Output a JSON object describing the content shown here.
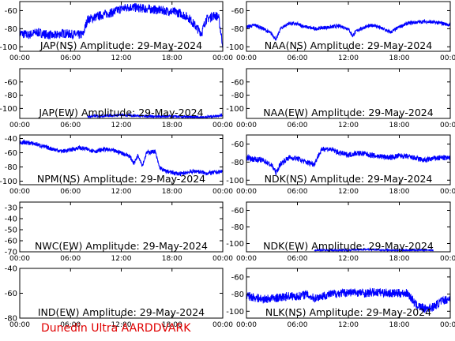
{
  "footer": "Dunedin Ultra AARDDVARK",
  "line_color": "#0000ff",
  "footer_color": "#e00000",
  "x_ticks": [
    "00:00",
    "06:00",
    "12:00",
    "18:00",
    "00:00"
  ],
  "chart_data": [
    {
      "type": "line",
      "title": "JAP(NS) Amplitude: 29-May-2024",
      "ylim": [
        -105,
        -50
      ],
      "yticks": [
        -100,
        -80,
        -60
      ],
      "grid": false,
      "trace": {
        "x": [
          0,
          1,
          2,
          3,
          4,
          5,
          6,
          7,
          7.5,
          8,
          9,
          10,
          11,
          12,
          13,
          14,
          15,
          16,
          17,
          18,
          19,
          20,
          21,
          21.5,
          22,
          23,
          23.5,
          24
        ],
        "y": [
          -85,
          -87,
          -84,
          -86,
          -88,
          -85,
          -86,
          -87,
          -86,
          -70,
          -67,
          -64,
          -62,
          -58,
          -56,
          -57,
          -58,
          -59,
          -60,
          -61,
          -63,
          -68,
          -80,
          -85,
          -70,
          -65,
          -67,
          -98
        ],
        "noise": 5
      }
    },
    {
      "type": "line",
      "title": "NAA(NS) Amplitude: 29-May-2024",
      "ylim": [
        -105,
        -50
      ],
      "yticks": [
        -100,
        -80,
        -60
      ],
      "grid": false,
      "trace": {
        "x": [
          0,
          1,
          2,
          3,
          3.5,
          4,
          5,
          6,
          7,
          8,
          9,
          10,
          11,
          12,
          12.5,
          13,
          14,
          15,
          16,
          17,
          18,
          19,
          20,
          21,
          22,
          23,
          24
        ],
        "y": [
          -78,
          -76,
          -80,
          -86,
          -92,
          -80,
          -74,
          -75,
          -78,
          -80,
          -79,
          -78,
          -77,
          -80,
          -88,
          -82,
          -78,
          -76,
          -80,
          -84,
          -78,
          -74,
          -73,
          -72,
          -73,
          -74,
          -76
        ],
        "noise": 2
      }
    },
    {
      "type": "line",
      "title": "JAP(EW) Amplitude: 29-May-2024",
      "ylim": [
        -115,
        -40
      ],
      "yticks": [
        -100,
        -80,
        -60
      ],
      "grid": false,
      "trace": {
        "x": [
          8,
          10,
          12,
          14,
          16,
          18,
          20,
          22,
          24
        ],
        "y": [
          -112,
          -111,
          -110,
          -111,
          -112,
          -112,
          -113,
          -113,
          -110
        ],
        "noise": 2
      }
    },
    {
      "type": "line",
      "title": "NAA(EW) Amplitude: 29-May-2024",
      "ylim": [
        -115,
        -40
      ],
      "yticks": [
        -100,
        -80,
        -60
      ],
      "grid": false,
      "trace": {
        "x": [
          0,
          2,
          4,
          6,
          8,
          10,
          12,
          14,
          16,
          18,
          20,
          22,
          24
        ],
        "y": [
          -118,
          -118,
          -118,
          -118,
          -118,
          -118,
          -118,
          -118,
          -118,
          -118,
          -118,
          -118,
          -118
        ],
        "noise": 0
      }
    },
    {
      "type": "line",
      "title": "NPM(NS) Amplitude: 29-May-2024",
      "ylim": [
        -105,
        -35
      ],
      "yticks": [
        -100,
        -80,
        -60,
        -40
      ],
      "grid": false,
      "trace": {
        "x": [
          0,
          1,
          2,
          3,
          4,
          5,
          6,
          7,
          8,
          9,
          10,
          11,
          12,
          13,
          13.5,
          14,
          14.5,
          15,
          16,
          16.5,
          17,
          18,
          19,
          20,
          21,
          22,
          23,
          24
        ],
        "y": [
          -45,
          -46,
          -48,
          -52,
          -55,
          -58,
          -56,
          -53,
          -55,
          -58,
          -55,
          -57,
          -60,
          -65,
          -75,
          -63,
          -78,
          -60,
          -58,
          -80,
          -85,
          -88,
          -90,
          -87,
          -86,
          -89,
          -88,
          -86
        ],
        "noise": 3
      }
    },
    {
      "type": "line",
      "title": "NDK(NS) Amplitude: 29-May-2024",
      "ylim": [
        -105,
        -50
      ],
      "yticks": [
        -100,
        -80,
        -60
      ],
      "grid": false,
      "trace": {
        "x": [
          0,
          1,
          2,
          3,
          3.5,
          4,
          5,
          6,
          7,
          8,
          8.5,
          9,
          10,
          11,
          12,
          13,
          14,
          15,
          16,
          17,
          18,
          19,
          20,
          21,
          22,
          23,
          24
        ],
        "y": [
          -75,
          -77,
          -78,
          -84,
          -92,
          -82,
          -75,
          -76,
          -80,
          -82,
          -72,
          -65,
          -66,
          -70,
          -72,
          -70,
          -71,
          -73,
          -74,
          -75,
          -73,
          -74,
          -76,
          -78,
          -76,
          -75,
          -76
        ],
        "noise": 3
      }
    },
    {
      "type": "line",
      "title": "NWC(EW) Amplitude: 29-May-2024",
      "ylim": [
        -70,
        -25
      ],
      "yticks": [
        -70,
        -60,
        -50,
        -40,
        -30
      ],
      "grid": false,
      "trace": {
        "x": [],
        "y": [],
        "noise": 0
      }
    },
    {
      "type": "line",
      "title": "NDK(EW) Amplitude: 29-May-2024",
      "ylim": [
        -110,
        -50
      ],
      "yticks": [
        -100,
        -80,
        -60
      ],
      "grid": false,
      "trace": {
        "x": [
          8,
          10,
          12,
          14,
          16,
          18,
          20,
          22
        ],
        "y": [
          -108,
          -108,
          -108,
          -107,
          -108,
          -108,
          -108,
          -108
        ],
        "noise": 1
      }
    },
    {
      "type": "line",
      "title": "IND(EW) Amplitude: 29-May-2024",
      "ylim": [
        -80,
        -40
      ],
      "yticks": [
        -80,
        -60,
        -40
      ],
      "grid": false,
      "trace": {
        "x": [],
        "y": [],
        "noise": 0
      }
    },
    {
      "type": "line",
      "title": "NLK(NS) Amplitude: 29-May-2024",
      "ylim": [
        -108,
        -50
      ],
      "yticks": [
        -100,
        -80,
        -60
      ],
      "grid": false,
      "trace": {
        "x": [
          0,
          1,
          2,
          3,
          4,
          5,
          6,
          7,
          8,
          9,
          10,
          11,
          12,
          13,
          14,
          15,
          16,
          17,
          18,
          19,
          20,
          21,
          22,
          23,
          24
        ],
        "y": [
          -82,
          -84,
          -86,
          -85,
          -84,
          -82,
          -83,
          -80,
          -85,
          -82,
          -80,
          -79,
          -78,
          -78,
          -79,
          -78,
          -78,
          -79,
          -79,
          -79,
          -93,
          -97,
          -95,
          -88,
          -85
        ],
        "noise": 5
      }
    }
  ]
}
